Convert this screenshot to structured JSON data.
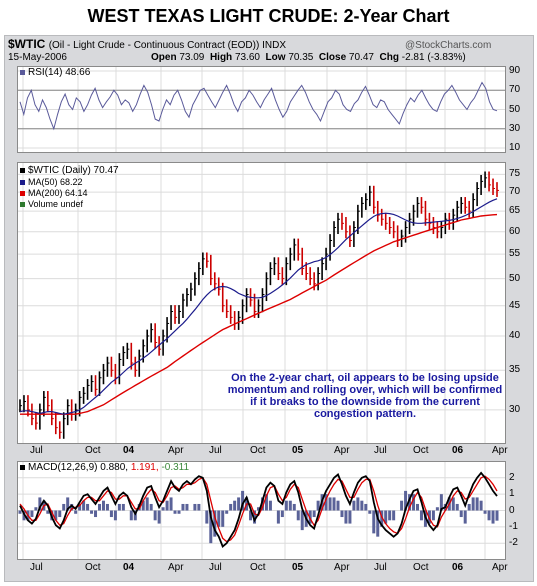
{
  "title": "WEST TEXAS LIGHT CRUDE: 2-Year Chart",
  "header": {
    "symbol": "$WTIC",
    "description": "(Oil - Light Crude - Continuous Contract (EOD)) INDX",
    "watermark": "@StockCharts.com",
    "date": "15-May-2006",
    "open_label": "Open",
    "open": "73.09",
    "high_label": "High",
    "high": "73.60",
    "low_label": "Low",
    "low": "70.35",
    "close_label": "Close",
    "close": "70.47",
    "chg_label": "Chg",
    "chg": "-2.81 (-3.83%)"
  },
  "legend": {
    "rsi": "RSI(14) 48.66",
    "price": "$WTIC (Daily) 70.47",
    "ma50": "MA(50) 68.22",
    "ma200": "MA(200) 64.14",
    "volume": "Volume undef",
    "macd_prefix": "MACD(12,26,9)",
    "macd_v1": "0.880,",
    "macd_v2": "1.191,",
    "macd_v3": "-0.311"
  },
  "annotation": {
    "line1": "On the 2-year chart, oil appears to be losing upside",
    "line2": "momentum and rolling over, which will be confirmed",
    "line3": "if it breaks to the downside from the current",
    "line4": "congestion pattern."
  },
  "x_labels": [
    {
      "text": "Jul",
      "bold": false
    },
    {
      "text": "Oct",
      "bold": false
    },
    {
      "text": "04",
      "bold": true
    },
    {
      "text": "Apr",
      "bold": false
    },
    {
      "text": "Jul",
      "bold": false
    },
    {
      "text": "Oct",
      "bold": false
    },
    {
      "text": "05",
      "bold": true
    },
    {
      "text": "Apr",
      "bold": false
    },
    {
      "text": "Jul",
      "bold": false
    },
    {
      "text": "Oct",
      "bold": false
    },
    {
      "text": "06",
      "bold": true
    },
    {
      "text": "Apr",
      "bold": false
    }
  ],
  "colors": {
    "price_bar": "#000000",
    "up_bar": "#cc0000",
    "ma50": "#1c1c8c",
    "ma200": "#dd0000",
    "rsi": "#5a5a9a",
    "macd": "#000000",
    "signal": "#dd0000",
    "hist": "#5a6298"
  },
  "chart_data": [
    {
      "type": "line",
      "panel": "rsi",
      "name": "RSI(14)",
      "y_ticks": [
        10,
        30,
        50,
        70,
        90
      ],
      "ylim": [
        10,
        90
      ],
      "reference_lines": [
        30,
        70
      ],
      "last": 48.66,
      "values": [
        58,
        45,
        62,
        70,
        55,
        48,
        60,
        52,
        40,
        30,
        45,
        58,
        66,
        55,
        50,
        62,
        58,
        48,
        55,
        65,
        72,
        60,
        52,
        58,
        63,
        70,
        65,
        55,
        60,
        57,
        48,
        55,
        66,
        75,
        68,
        55,
        40,
        38,
        50,
        60,
        55,
        65,
        70,
        60,
        48,
        42,
        55,
        62,
        70,
        72,
        65,
        58,
        52,
        60,
        68,
        75,
        66,
        55,
        48,
        58,
        62,
        70,
        65,
        58,
        52,
        60,
        66,
        72,
        60,
        50,
        42,
        48,
        58,
        64,
        70,
        75,
        68,
        58,
        50,
        45,
        38,
        48,
        58,
        62,
        70,
        66,
        55,
        50,
        48,
        56,
        60,
        68,
        74,
        65,
        55,
        52,
        60,
        58,
        50,
        45,
        40,
        35,
        46,
        55,
        62,
        58,
        65,
        70,
        62,
        55,
        50,
        48,
        58,
        66,
        70,
        75,
        68,
        60,
        55,
        50,
        57,
        62,
        70,
        78,
        72,
        58,
        50,
        48.66
      ]
    },
    {
      "type": "line",
      "panel": "price",
      "name": "$WTIC (Daily)",
      "y_scale": "log",
      "y_ticks": [
        30,
        35,
        40,
        45,
        50,
        55,
        60,
        65,
        70,
        75
      ],
      "ylim": [
        27,
        76
      ],
      "x_ticks": [
        "Jul",
        "Oct",
        "04",
        "Apr",
        "Jul",
        "Oct",
        "05",
        "Apr",
        "Jul",
        "Oct",
        "06",
        "Apr"
      ],
      "close": [
        30.5,
        31,
        30,
        29,
        28.5,
        30,
        31.5,
        30.5,
        29,
        28,
        27.5,
        29,
        30.5,
        29.5,
        30,
        31.5,
        32,
        33,
        33.5,
        32.5,
        34,
        35,
        36,
        35,
        34,
        36.5,
        37.5,
        38,
        36,
        35,
        37,
        38.5,
        40,
        41,
        39,
        38,
        40,
        42,
        44,
        43,
        44,
        46,
        47,
        48,
        50,
        52,
        54,
        53.5,
        50,
        49,
        48,
        45,
        44,
        43,
        42,
        43,
        45,
        47,
        46,
        44,
        45,
        47,
        50,
        52,
        53,
        51,
        50,
        53,
        55,
        57,
        55,
        52,
        51,
        50,
        49,
        51,
        53,
        55,
        58,
        61,
        63,
        62,
        60,
        58,
        61,
        65,
        67,
        68,
        70,
        66,
        64,
        63,
        62,
        61,
        60,
        58,
        59,
        61,
        63,
        65,
        67,
        66,
        63,
        62,
        61,
        60,
        61,
        63,
        62,
        64,
        66,
        67,
        66,
        65,
        68,
        71,
        73,
        74,
        72,
        71,
        70.47
      ],
      "ma50": [
        29.8,
        29.9,
        29.9,
        29.8,
        29.7,
        29.6,
        29.7,
        29.8,
        29.8,
        29.7,
        29.6,
        29.5,
        29.6,
        29.7,
        29.8,
        30,
        30.3,
        30.7,
        31.1,
        31.5,
        31.9,
        32.4,
        32.9,
        33.4,
        33.8,
        34.2,
        34.7,
        35.2,
        35.6,
        36,
        36.3,
        36.7,
        37.1,
        37.6,
        38.1,
        38.6,
        39.1,
        39.6,
        40.2,
        40.8,
        41.4,
        42,
        42.7,
        43.5,
        44.3,
        45.2,
        46.1,
        46.9,
        47.6,
        48.1,
        48.4,
        48.5,
        48.4,
        48.1,
        47.7,
        47.2,
        46.9,
        46.6,
        46.5,
        46.4,
        46.4,
        46.5,
        46.8,
        47.2,
        47.7,
        48.2,
        48.8,
        49.4,
        50.1,
        50.9,
        51.7,
        52.3,
        52.8,
        53.1,
        53.4,
        53.6,
        53.9,
        54.3,
        54.9,
        55.6,
        56.4,
        57.3,
        58.2,
        59,
        59.8,
        60.6,
        61.4,
        62.2,
        63,
        63.7,
        64.2,
        64.4,
        64.5,
        64.4,
        64.2,
        63.8,
        63.3,
        62.8,
        62.4,
        62.1,
        62,
        62,
        62.1,
        62.2,
        62.3,
        62.4,
        62.5,
        62.6,
        62.7,
        62.9,
        63.2,
        63.5,
        63.9,
        64.4,
        64.9,
        65.5,
        66.1,
        66.7,
        67.3,
        67.8,
        68.22
      ],
      "ma200": [
        29.5,
        29.5,
        29.5,
        29.5,
        29.5,
        29.5,
        29.5,
        29.5,
        29.5,
        29.5,
        29.5,
        29.5,
        29.5,
        29.5,
        29.5,
        29.6,
        29.7,
        29.8,
        30,
        30.2,
        30.4,
        30.6,
        30.9,
        31.2,
        31.5,
        31.8,
        32.1,
        32.4,
        32.7,
        33,
        33.3,
        33.6,
        33.9,
        34.2,
        34.5,
        34.8,
        35.1,
        35.4,
        35.8,
        36.2,
        36.6,
        37,
        37.4,
        37.8,
        38.2,
        38.6,
        39,
        39.4,
        39.8,
        40.2,
        40.6,
        41,
        41.3,
        41.6,
        41.9,
        42.2,
        42.5,
        42.8,
        43.1,
        43.4,
        43.7,
        44,
        44.3,
        44.6,
        44.9,
        45.2,
        45.5,
        45.8,
        46.1,
        46.5,
        46.9,
        47.3,
        47.7,
        48.1,
        48.5,
        48.9,
        49.3,
        49.7,
        50.2,
        50.7,
        51.2,
        51.7,
        52.2,
        52.7,
        53.2,
        53.7,
        54.2,
        54.7,
        55.2,
        55.7,
        56.1,
        56.5,
        56.9,
        57.3,
        57.7,
        58,
        58.3,
        58.6,
        58.9,
        59.2,
        59.5,
        59.8,
        60.1,
        60.4,
        60.7,
        61,
        61.3,
        61.6,
        61.9,
        62.2,
        62.5,
        62.8,
        63,
        63.2,
        63.4,
        63.6,
        63.8,
        63.9,
        64,
        64.1,
        64.14
      ]
    },
    {
      "type": "line",
      "panel": "macd",
      "name": "MACD(12,26,9)",
      "y_ticks": [
        -2,
        -1,
        0,
        1,
        2
      ],
      "ylim": [
        -2.6,
        2.6
      ],
      "macd_last": 0.88,
      "signal_last": 1.191,
      "histogram_last": -0.311,
      "macd": [
        0.3,
        -0.2,
        -0.6,
        -0.8,
        -0.5,
        0.2,
        0.6,
        0.3,
        -0.4,
        -0.9,
        -1.1,
        -0.6,
        0.1,
        0.3,
        0.1,
        0.5,
        0.9,
        1.0,
        0.7,
        0.4,
        0.8,
        1.2,
        1.4,
        0.9,
        0.4,
        0.9,
        1.1,
        0.9,
        0.2,
        -0.2,
        0.3,
        0.9,
        1.4,
        1.5,
        0.8,
        0.2,
        0.6,
        1.2,
        1.8,
        1.4,
        1.2,
        1.6,
        1.8,
        1.6,
        1.9,
        2.1,
        2.0,
        1.2,
        -0.4,
        -1.2,
        -1.6,
        -2.2,
        -2.0,
        -1.6,
        -1.2,
        -0.5,
        0.4,
        0.8,
        0.1,
        -0.6,
        -0.2,
        0.6,
        1.4,
        1.7,
        1.5,
        0.6,
        0.4,
        1.1,
        1.6,
        1.8,
        1.1,
        0.1,
        -0.5,
        -0.9,
        -1.1,
        -0.3,
        0.6,
        1.2,
        1.6,
        2.0,
        2.2,
        1.6,
        0.9,
        0.4,
        1.1,
        1.7,
        2.0,
        2.1,
        1.8,
        0.5,
        -0.5,
        -0.9,
        -1.2,
        -1.4,
        -1.6,
        -1.4,
        -0.8,
        0.1,
        0.7,
        1.2,
        1.3,
        0.5,
        -0.4,
        -0.9,
        -1.2,
        -0.9,
        0.1,
        0.2,
        0.8,
        1.3,
        1.4,
        0.9,
        0.3,
        1.0,
        1.6,
        2.0,
        2.3,
        2.0,
        1.6,
        1.2,
        0.88
      ],
      "signal": [
        0.4,
        0.1,
        -0.3,
        -0.6,
        -0.6,
        -0.2,
        0.3,
        0.4,
        -0.1,
        -0.6,
        -0.9,
        -0.8,
        -0.3,
        0.1,
        0.2,
        0.3,
        0.6,
        0.8,
        0.8,
        0.6,
        0.6,
        0.9,
        1.2,
        1.1,
        0.7,
        0.7,
        0.9,
        0.9,
        0.5,
        0.1,
        0.1,
        0.6,
        1.0,
        1.3,
        1.1,
        0.6,
        0.5,
        0.9,
        1.4,
        1.5,
        1.3,
        1.4,
        1.6,
        1.6,
        1.7,
        1.9,
        2.0,
        1.6,
        0.6,
        -0.4,
        -1.1,
        -1.7,
        -1.9,
        -1.8,
        -1.5,
        -0.9,
        -0.2,
        0.4,
        0.4,
        -0.2,
        -0.3,
        0.2,
        0.9,
        1.4,
        1.5,
        1.0,
        0.6,
        0.8,
        1.3,
        1.6,
        1.4,
        0.7,
        0.0,
        -0.5,
        -0.9,
        -0.6,
        0.1,
        0.7,
        1.2,
        1.6,
        1.9,
        1.8,
        1.3,
        0.8,
        0.8,
        1.3,
        1.7,
        1.9,
        1.9,
        1.2,
        0.3,
        -0.4,
        -0.8,
        -1.1,
        -1.3,
        -1.4,
        -1.1,
        -0.5,
        0.2,
        0.7,
        1.1,
        0.8,
        0.1,
        -0.5,
        -0.9,
        -1.0,
        -0.4,
        0.0,
        0.4,
        0.9,
        1.2,
        1.1,
        0.7,
        0.8,
        1.2,
        1.6,
        2.0,
        2.1,
        1.9,
        1.6,
        1.191
      ]
    }
  ]
}
